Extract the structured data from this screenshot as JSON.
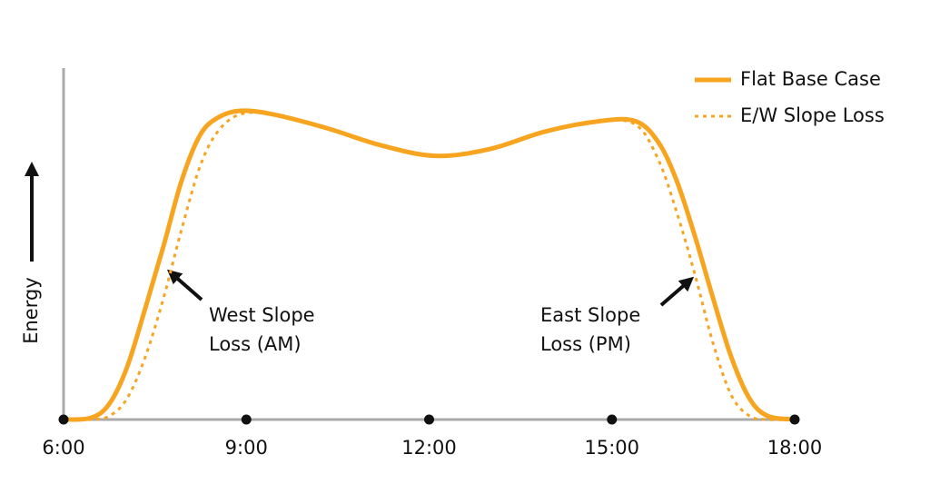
{
  "chart_data": {
    "type": "line",
    "y_label": "Energy",
    "x": [
      6.0,
      6.45,
      6.75,
      7.04,
      7.34,
      7.64,
      7.94,
      8.24,
      8.53,
      8.9,
      9.43,
      10.32,
      11.22,
      12.11,
      13.0,
      13.9,
      14.79,
      15.39,
      15.76,
      16.06,
      16.36,
      16.66,
      16.96,
      17.26,
      17.56,
      18.0
    ],
    "series": [
      {
        "name": "Flat Base Case",
        "color": "#f7a520",
        "dash": "solid",
        "values": [
          0,
          0.5,
          4.5,
          15,
          32,
          50,
          69,
          82,
          87,
          89,
          88,
          84,
          79,
          76,
          78,
          83,
          86,
          86,
          80,
          69,
          53,
          35,
          18,
          6,
          1,
          0
        ]
      },
      {
        "name": "E/W Slope Loss",
        "color": "#f7a520",
        "dash": "dotted",
        "values": [
          0,
          0,
          1,
          6,
          18,
          35,
          55,
          73,
          83,
          88,
          88,
          84,
          79,
          76,
          78,
          83,
          86,
          85,
          75,
          60,
          42,
          22,
          7,
          1,
          0,
          0
        ]
      }
    ],
    "xlim": [
      6,
      18
    ],
    "xticks": [
      {
        "value": 6,
        "label": "6:00"
      },
      {
        "value": 9,
        "label": "9:00"
      },
      {
        "value": 12,
        "label": "12:00"
      },
      {
        "value": 15,
        "label": "15:00"
      },
      {
        "value": 18,
        "label": "18:00"
      }
    ],
    "ylim": [
      0,
      100
    ],
    "legend": "top-right",
    "annotations": [
      {
        "lines": [
          "West Slope",
          "Loss (AM)"
        ]
      },
      {
        "lines": [
          "East Slope",
          "Loss (PM)"
        ]
      }
    ]
  }
}
